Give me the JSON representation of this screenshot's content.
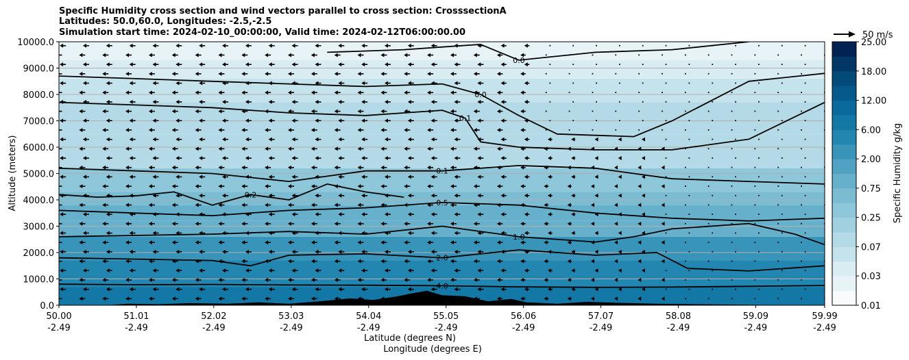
{
  "title_lines": [
    "Specific Humidity cross section and wind vectors parallel to cross section: CrosssectionA",
    "Latitudes: 50.0,60.0, Longitudes: -2.5,-2.5",
    "Simulation start time: 2024-02-10_00:00:00, Valid time: 2024-02-12T06:00:00.00"
  ],
  "chart_data": {
    "type": "heatmap",
    "subtype": "filled-contour cross section with contour lines and wind vectors",
    "ylabel": "Altitude (meters)",
    "xlabel_lines": [
      "Latitude (degrees N)",
      "Longitude (degrees E)"
    ],
    "ylim": [
      0,
      10000
    ],
    "xlim": [
      50.0,
      59.99
    ],
    "y_ticks": [
      {
        "value": 0,
        "label": "0.0"
      },
      {
        "value": 1000,
        "label": "1000.0"
      },
      {
        "value": 2000,
        "label": "2000.0"
      },
      {
        "value": 3000,
        "label": "3000.0"
      },
      {
        "value": 4000,
        "label": "4000.0"
      },
      {
        "value": 5000,
        "label": "5000.0"
      },
      {
        "value": 6000,
        "label": "6000.0"
      },
      {
        "value": 7000,
        "label": "7000.0"
      },
      {
        "value": 8000,
        "label": "8000.0"
      },
      {
        "value": 9000,
        "label": "9000.0"
      },
      {
        "value": 10000,
        "label": "10000.0"
      }
    ],
    "x_ticks": [
      {
        "value": 50.0,
        "lat": "50.00",
        "lon": "-2.49"
      },
      {
        "value": 51.01,
        "lat": "51.01",
        "lon": "-2.49"
      },
      {
        "value": 52.02,
        "lat": "52.02",
        "lon": "-2.49"
      },
      {
        "value": 53.03,
        "lat": "53.03",
        "lon": "-2.49"
      },
      {
        "value": 54.04,
        "lat": "54.04",
        "lon": "-2.49"
      },
      {
        "value": 55.05,
        "lat": "55.05",
        "lon": "-2.49"
      },
      {
        "value": 56.06,
        "lat": "56.06",
        "lon": "-2.49"
      },
      {
        "value": 57.07,
        "lat": "57.07",
        "lon": "-2.49"
      },
      {
        "value": 58.08,
        "lat": "58.08",
        "lon": "-2.49"
      },
      {
        "value": 59.09,
        "lat": "59.09",
        "lon": "-2.49"
      },
      {
        "value": 59.99,
        "lat": "59.99",
        "lon": "-2.49"
      }
    ],
    "grid": "horizontal",
    "colorbar": {
      "label": "Specific Humidity g/kg",
      "tick_labels": [
        "0.01",
        "0.03",
        "0.07",
        "0.25",
        "0.75",
        "2.00",
        "6.00",
        "12.00",
        "18.00",
        "25.00"
      ],
      "levels": 18,
      "colors": [
        "#f7fbfc",
        "#e7f3f6",
        "#d8ecf1",
        "#c5e3ec",
        "#b3dae6",
        "#a1d1e0",
        "#8ec7d9",
        "#7bbcd2",
        "#66b0cb",
        "#4fa2c2",
        "#3894b9",
        "#2386b0",
        "#1478a6",
        "#0a6a9c",
        "#065a8b",
        "#044a78",
        "#033765",
        "#022254"
      ]
    },
    "humidity_bands": [
      {
        "from": 0,
        "to": 700,
        "q": 6.0
      },
      {
        "from": 700,
        "to": 1700,
        "q": 4.0
      },
      {
        "from": 1700,
        "to": 2600,
        "q": 2.0
      },
      {
        "from": 2600,
        "to": 3200,
        "q": 1.0
      },
      {
        "from": 3200,
        "to": 3800,
        "q": 0.75
      },
      {
        "from": 3800,
        "to": 4300,
        "q": 0.5
      },
      {
        "from": 4300,
        "to": 5200,
        "q": 0.25
      },
      {
        "from": 5200,
        "to": 6500,
        "q": 0.1
      },
      {
        "from": 6500,
        "to": 7700,
        "q": 0.07
      },
      {
        "from": 7700,
        "to": 8600,
        "q": 0.05
      },
      {
        "from": 8600,
        "to": 9300,
        "q": 0.03
      },
      {
        "from": 9300,
        "to": 10000,
        "q": 0.02
      }
    ],
    "contours": [
      {
        "label": "4.0",
        "points": [
          [
            50.0,
            800
          ],
          [
            51.0,
            780
          ],
          [
            52.0,
            790
          ],
          [
            53.0,
            770
          ],
          [
            54.0,
            760
          ],
          [
            55.0,
            740
          ],
          [
            56.0,
            700
          ],
          [
            57.0,
            680
          ],
          [
            58.0,
            690
          ],
          [
            59.0,
            720
          ],
          [
            59.99,
            750
          ]
        ]
      },
      {
        "label": "2.0",
        "points": [
          [
            50.0,
            1800
          ],
          [
            51.0,
            1750
          ],
          [
            52.0,
            1700
          ],
          [
            52.5,
            1500
          ],
          [
            53.0,
            1900
          ],
          [
            54.0,
            1950
          ],
          [
            55.0,
            1800
          ],
          [
            56.0,
            2100
          ],
          [
            57.0,
            1900
          ],
          [
            57.8,
            2000
          ],
          [
            58.2,
            1400
          ],
          [
            59.0,
            1300
          ],
          [
            59.99,
            1500
          ]
        ]
      },
      {
        "label": "1.0",
        "points": [
          [
            50.0,
            2600
          ],
          [
            51.0,
            2650
          ],
          [
            52.0,
            2700
          ],
          [
            53.0,
            2800
          ],
          [
            54.0,
            2700
          ],
          [
            55.0,
            3000
          ],
          [
            56.0,
            2600
          ],
          [
            57.0,
            2400
          ],
          [
            57.5,
            2600
          ],
          [
            58.0,
            2900
          ],
          [
            59.0,
            3100
          ],
          [
            59.6,
            2700
          ],
          [
            59.99,
            2300
          ]
        ]
      },
      {
        "label": "0.5",
        "points": [
          [
            50.0,
            3600
          ],
          [
            51.0,
            3500
          ],
          [
            52.0,
            3400
          ],
          [
            53.0,
            3600
          ],
          [
            54.0,
            3700
          ],
          [
            55.0,
            3900
          ],
          [
            56.0,
            3800
          ],
          [
            57.0,
            3500
          ],
          [
            58.0,
            3300
          ],
          [
            59.0,
            3200
          ],
          [
            59.99,
            3300
          ]
        ]
      },
      {
        "label": "0.2",
        "points": [
          [
            50.0,
            4200
          ],
          [
            50.5,
            4100
          ],
          [
            51.0,
            4150
          ],
          [
            51.5,
            4300
          ],
          [
            52.0,
            3800
          ],
          [
            52.5,
            4200
          ],
          [
            53.0,
            4000
          ],
          [
            53.5,
            4600
          ],
          [
            54.0,
            4300
          ],
          [
            54.5,
            4100
          ]
        ]
      },
      {
        "label": "0.1",
        "points": [
          [
            50.0,
            5200
          ],
          [
            51.0,
            5100
          ],
          [
            52.0,
            5000
          ],
          [
            53.0,
            4700
          ],
          [
            54.0,
            5100
          ],
          [
            55.0,
            5100
          ],
          [
            56.0,
            5300
          ],
          [
            57.0,
            5200
          ],
          [
            58.0,
            4800
          ],
          [
            59.0,
            4700
          ],
          [
            59.99,
            4600
          ]
        ]
      },
      {
        "label": "0.1",
        "points": [
          [
            50.0,
            7700
          ],
          [
            51.0,
            7600
          ],
          [
            52.0,
            7500
          ],
          [
            53.0,
            7300
          ],
          [
            54.0,
            7200
          ],
          [
            55.0,
            7400
          ],
          [
            55.3,
            7100
          ],
          [
            55.5,
            6200
          ],
          [
            56.0,
            6000
          ],
          [
            57.0,
            5900
          ],
          [
            58.0,
            5900
          ],
          [
            59.0,
            6300
          ],
          [
            59.99,
            7700
          ]
        ]
      },
      {
        "label": "0.0",
        "points": [
          [
            50.0,
            8700
          ],
          [
            51.0,
            8600
          ],
          [
            52.0,
            8500
          ],
          [
            53.0,
            8400
          ],
          [
            54.0,
            8300
          ],
          [
            55.0,
            8400
          ],
          [
            55.5,
            8000
          ],
          [
            56.0,
            7200
          ],
          [
            56.5,
            6500
          ],
          [
            57.5,
            6400
          ],
          [
            58.0,
            7000
          ],
          [
            59.0,
            8500
          ],
          [
            59.99,
            8800
          ]
        ]
      },
      {
        "label": "0.0",
        "points": [
          [
            53.5,
            9600
          ],
          [
            54.5,
            9700
          ],
          [
            55.0,
            9800
          ],
          [
            55.5,
            9900
          ],
          [
            56.0,
            9300
          ],
          [
            57.0,
            9600
          ],
          [
            58.0,
            9700
          ],
          [
            59.0,
            10000
          ]
        ]
      }
    ],
    "terrain_peak_m": 550,
    "wind_vectors": {
      "reference_label": "50 m/s",
      "direction": "toward south (negative along-section)"
    }
  }
}
